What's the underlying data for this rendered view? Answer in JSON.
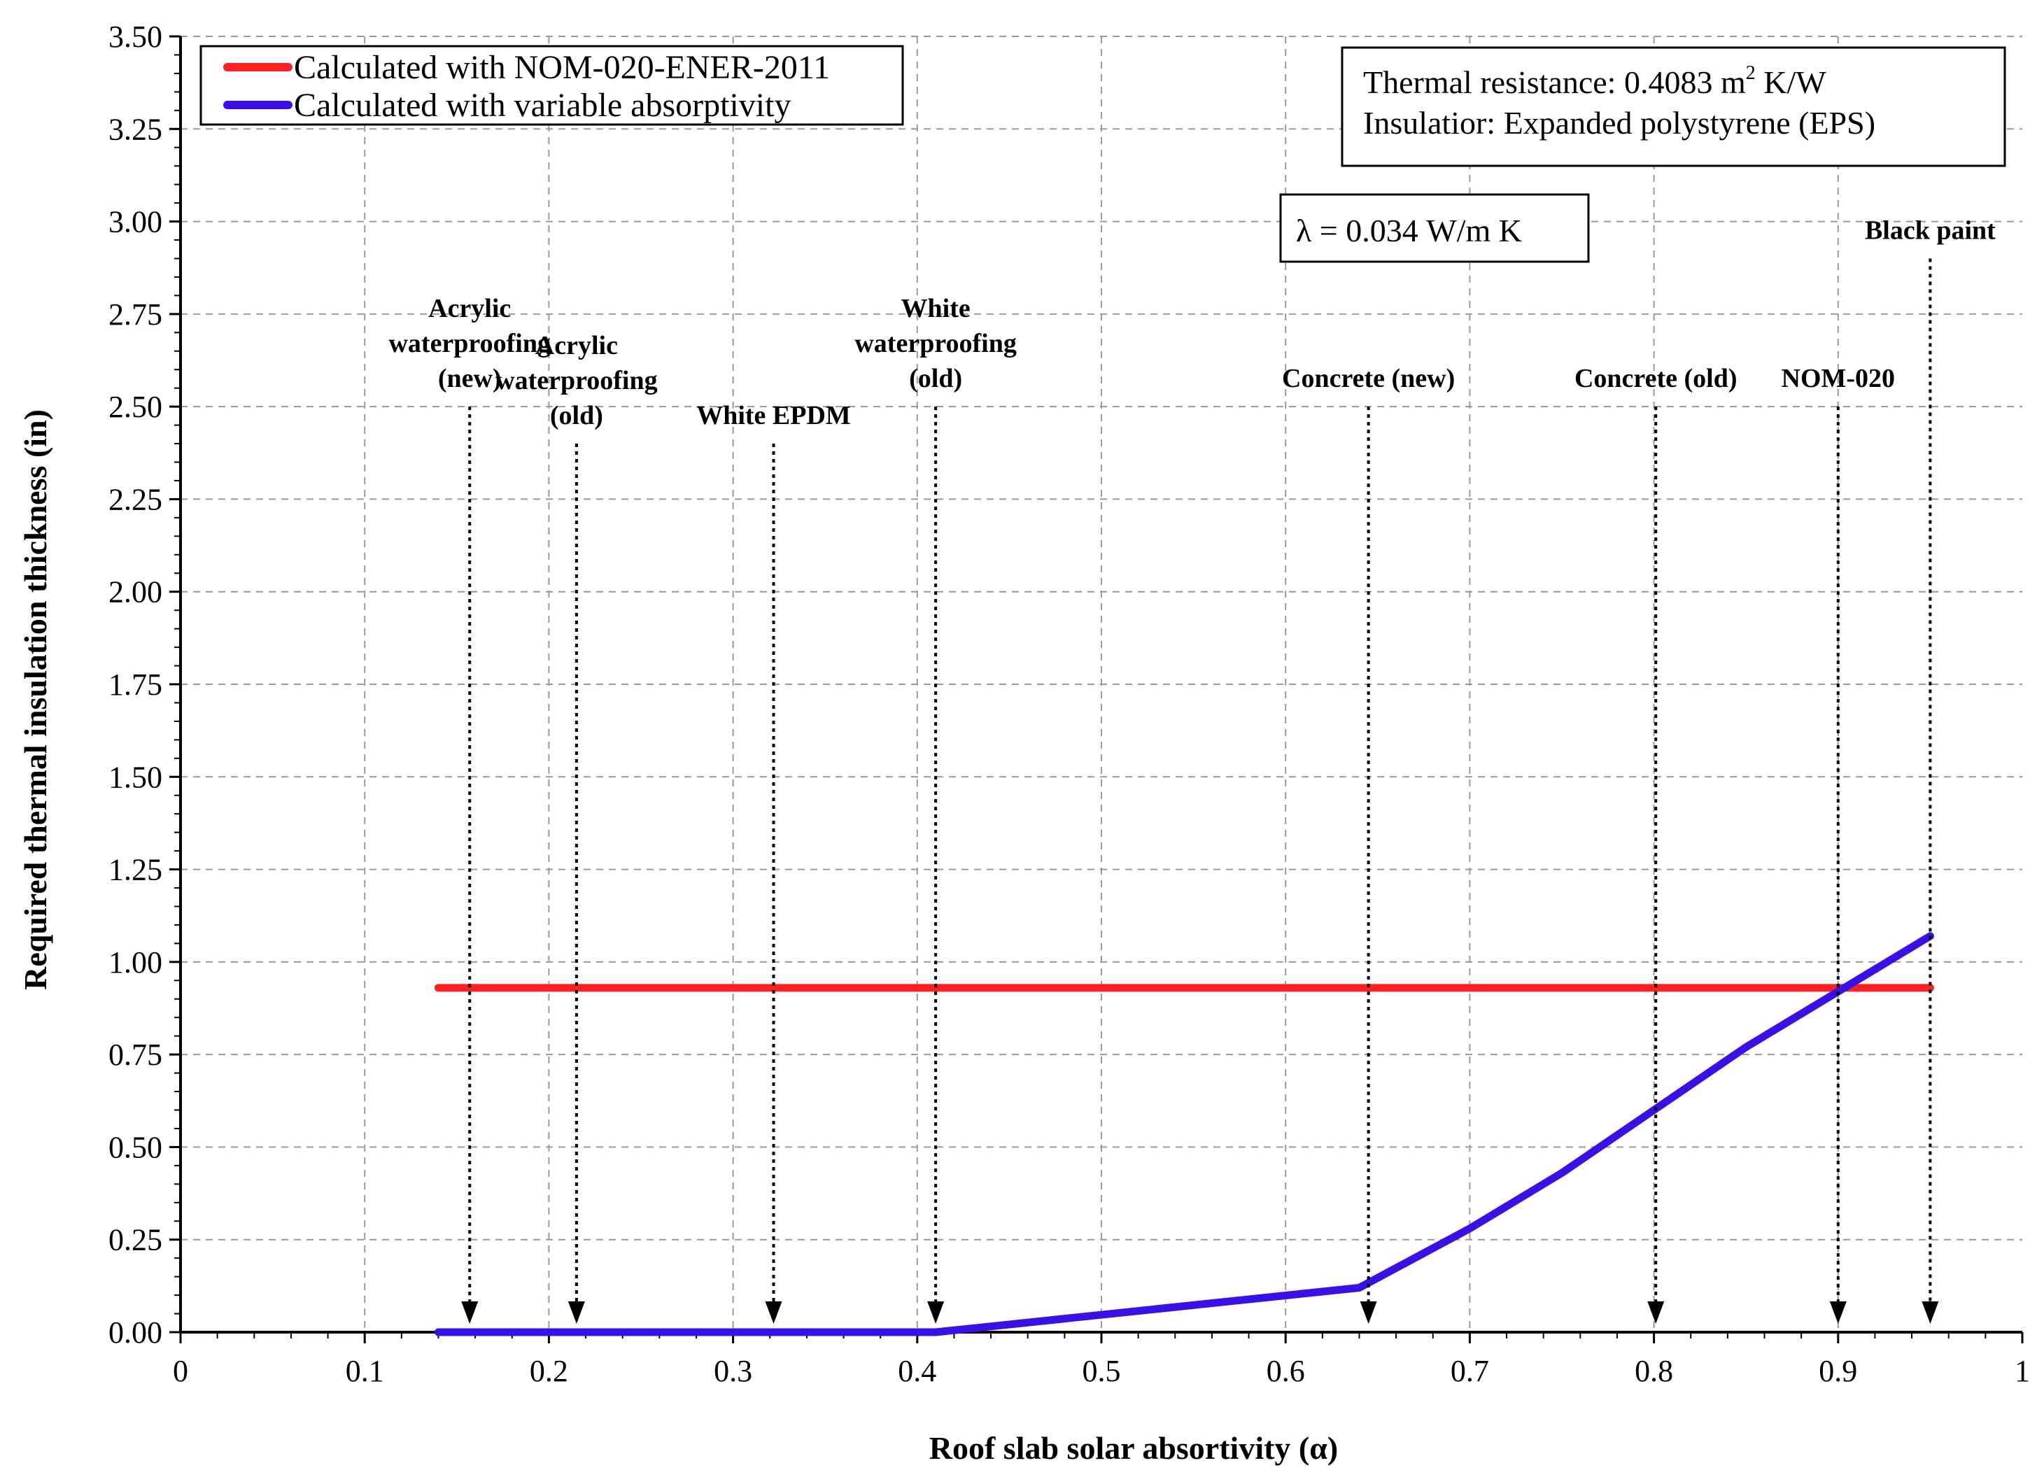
{
  "chart_data": {
    "type": "line",
    "xlabel": "Roof slab solar absortivity (α)",
    "ylabel": "Required thermal insulation thickness (in)",
    "xlim": [
      0,
      1
    ],
    "ylim": [
      0,
      3.5
    ],
    "x_ticks": [
      "0",
      "0.1",
      "0.2",
      "0.3",
      "0.4",
      "0.5",
      "0.6",
      "0.7",
      "0.8",
      "0.9",
      "1"
    ],
    "y_ticks": [
      "0.00",
      "0.25",
      "0.50",
      "0.75",
      "1.00",
      "1.25",
      "1.50",
      "1.75",
      "2.00",
      "2.25",
      "2.50",
      "2.75",
      "3.00",
      "3.25",
      "3.50"
    ],
    "grid": true,
    "legend_position": "top-left",
    "series": [
      {
        "name": "Calculated with NOM-020-ENER-2011",
        "color": "#ff2020",
        "x": [
          0.14,
          0.95
        ],
        "y": [
          0.93,
          0.93
        ]
      },
      {
        "name": "Calculated with variable absorptivity",
        "color": "#3a10e8",
        "x": [
          0.14,
          0.41,
          0.64,
          0.7,
          0.75,
          0.8,
          0.85,
          0.9,
          0.95
        ],
        "y": [
          0.0,
          0.0,
          0.12,
          0.28,
          0.43,
          0.6,
          0.77,
          0.92,
          1.07
        ]
      }
    ],
    "info_box": {
      "line1_prefix": "Thermal  resistance:  0.4083 m",
      "line1_sup": "2",
      "line1_suffix": " K/W",
      "line2": "Insulatior:  Expanded  polystyrene  (EPS)"
    },
    "lambda_box": "λ  =  0.034  W/m K",
    "annotations": [
      {
        "lines": [
          "Acrylic",
          "waterproofing",
          "(new)"
        ],
        "x": 0.157,
        "top": 2.5
      },
      {
        "lines": [
          "Acrylic",
          "waterproofing",
          "(old)"
        ],
        "x": 0.215,
        "top": 2.4
      },
      {
        "lines": [
          "White EPDM"
        ],
        "x": 0.322,
        "top": 2.4
      },
      {
        "lines": [
          "White",
          "waterproofing",
          "(old)"
        ],
        "x": 0.41,
        "top": 2.5
      },
      {
        "lines": [
          "Concrete (new)"
        ],
        "x": 0.645,
        "top": 2.5
      },
      {
        "lines": [
          "Concrete (old)"
        ],
        "x": 0.801,
        "top": 2.5
      },
      {
        "lines": [
          "NOM-020"
        ],
        "x": 0.9,
        "top": 2.5
      },
      {
        "lines": [
          "Black paint"
        ],
        "x": 0.95,
        "top": 2.9
      }
    ]
  }
}
